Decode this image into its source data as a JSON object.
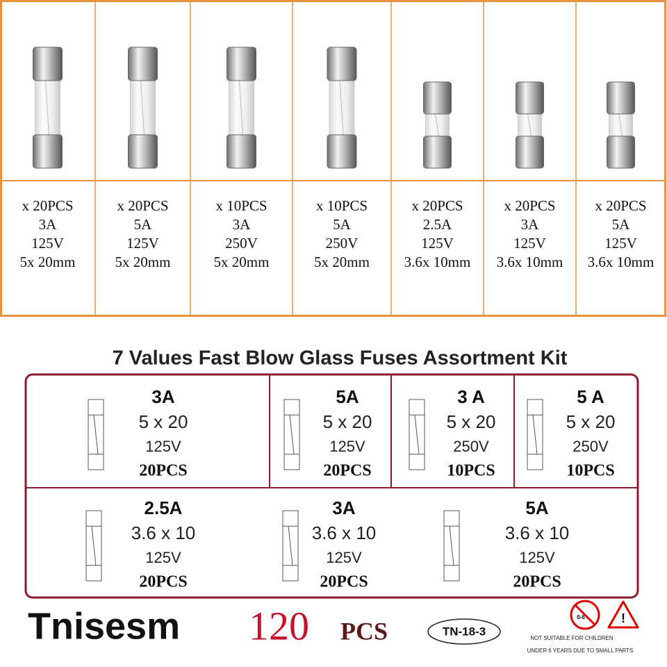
{
  "top_panel": {
    "items": [
      {
        "quantity": "x 20PCS",
        "current": "3A",
        "voltage": "125V",
        "size": "5x 20mm"
      },
      {
        "quantity": "x 20PCS",
        "current": "5A",
        "voltage": "125V",
        "size": "5x 20mm"
      },
      {
        "quantity": "x 10PCS",
        "current": "3A",
        "voltage": "250V",
        "size": "5x 20mm"
      },
      {
        "quantity": "x 10PCS",
        "current": "5A",
        "voltage": "250V",
        "size": "5x 20mm"
      },
      {
        "quantity": "x 20PCS",
        "current": "2.5A",
        "voltage": "125V",
        "size": "3.6x 10mm"
      },
      {
        "quantity": "x 20PCS",
        "current": "3A",
        "voltage": "125V",
        "size": "3.6x 10mm"
      },
      {
        "quantity": "x 20PCS",
        "current": "5A",
        "voltage": "125V",
        "size": "3.6x 10mm"
      }
    ]
  },
  "title": "7 Values Fast Blow Glass Fuses Assortment Kit",
  "kit_table": {
    "cells": [
      {
        "current": "3A",
        "size": "5 x 20",
        "voltage": "125V",
        "quantity": "20PCS"
      },
      {
        "current": "5A",
        "size": "5 x 20",
        "voltage": "125V",
        "quantity": "20PCS"
      },
      {
        "current": "3 A",
        "size": "5 x 20",
        "voltage": "250V",
        "quantity": "10PCS"
      },
      {
        "current": "5 A",
        "size": "5 x 20",
        "voltage": "250V",
        "quantity": "10PCS"
      },
      {
        "current": "2.5A",
        "size": "3.6 x 10",
        "voltage": "125V",
        "quantity": "20PCS"
      },
      {
        "current": "3A",
        "size": "3.6 x 10",
        "voltage": "125V",
        "quantity": "20PCS"
      },
      {
        "current": "5A",
        "size": "3.6 x 10",
        "voltage": "125V",
        "quantity": "20PCS"
      }
    ]
  },
  "footer": {
    "brand": "Tnisesm",
    "count": "120",
    "count_unit": "PCS",
    "model": "TN-18-3",
    "age_icon": "0-6",
    "warning": [
      "NOT SUITABLE FOR CHILDREN",
      "UNDER 6 YEARS DUE TO SMALL PARTS"
    ]
  }
}
